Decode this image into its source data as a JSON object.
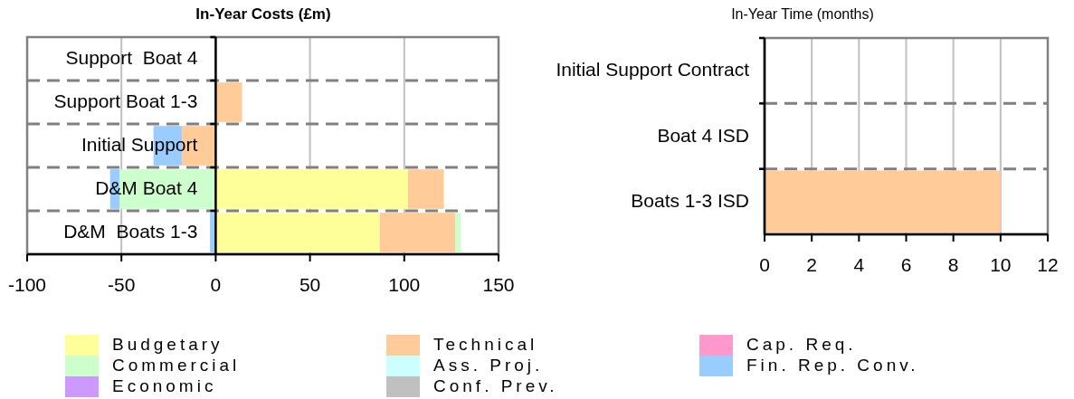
{
  "chart_data": [
    {
      "type": "bar",
      "orientation": "horizontal",
      "stacked": true,
      "title": "In-Year Costs (£m)",
      "categories": [
        "Support  Boat 4",
        "Support Boat 1-3",
        "Initial Support",
        "D&M Boat 4",
        "D&M  Boats 1-3"
      ],
      "series": [
        {
          "name": "Budgetary",
          "color": "#ffff99",
          "values": [
            null,
            null,
            null,
            102,
            87
          ]
        },
        {
          "name": "Technical",
          "color": "#ffcc99",
          "values": [
            null,
            14,
            -18,
            19,
            40
          ]
        },
        {
          "name": "Cap. Req.",
          "color": "#ff99cc",
          "values": [
            null,
            null,
            null,
            null,
            null
          ]
        },
        {
          "name": "Commercial",
          "color": "#ccffcc",
          "values": [
            null,
            null,
            null,
            -51,
            3
          ]
        },
        {
          "name": "Ass. Proj.",
          "color": "#ccffff",
          "values": [
            null,
            null,
            null,
            null,
            null
          ]
        },
        {
          "name": "Fin. Rep. Conv.",
          "color": "#99ccff",
          "values": [
            null,
            null,
            -15,
            -5,
            -3
          ]
        },
        {
          "name": "Economic",
          "color": "#cc99ff",
          "values": [
            null,
            null,
            null,
            null,
            null
          ]
        },
        {
          "name": "Conf. Prev.",
          "color": "#c0c0c0",
          "values": [
            null,
            null,
            null,
            null,
            null
          ]
        }
      ],
      "xlim": [
        -100,
        150
      ],
      "xticks": [
        -100,
        -50,
        0,
        50,
        100,
        150
      ],
      "grid": true,
      "legend": "bottom"
    },
    {
      "type": "bar",
      "orientation": "horizontal",
      "title": "In-Year Time (months)",
      "categories": [
        "Initial Support Contract",
        "Boat 4 ISD",
        "Boats 1-3 ISD"
      ],
      "series": [
        {
          "color": "#ffcc99",
          "values": [
            null,
            null,
            10
          ]
        }
      ],
      "xlim": [
        0,
        12
      ],
      "xticks": [
        0,
        2,
        4,
        6,
        8,
        10,
        12
      ],
      "grid": true
    }
  ]
}
